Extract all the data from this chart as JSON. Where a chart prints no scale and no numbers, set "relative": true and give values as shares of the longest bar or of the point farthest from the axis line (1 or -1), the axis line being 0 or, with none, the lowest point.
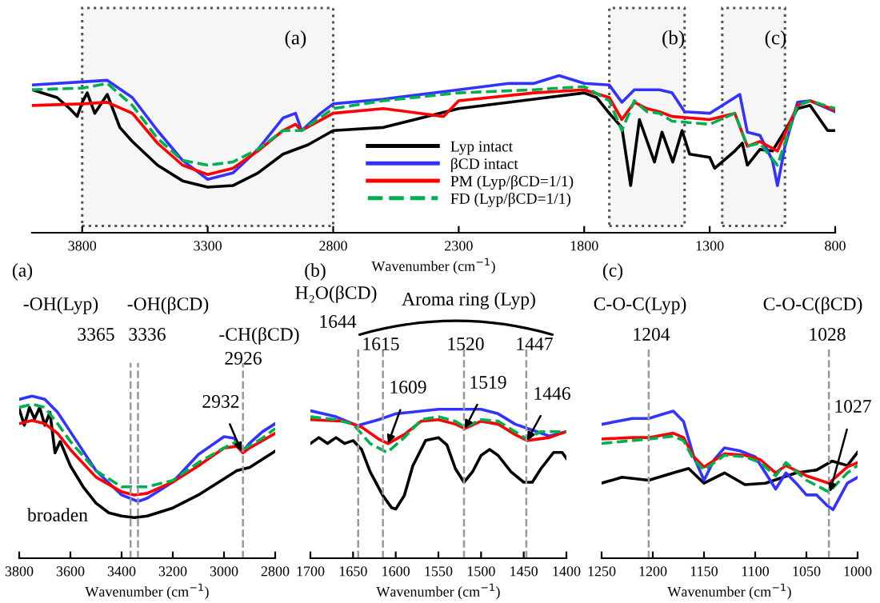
{
  "chart_data": [
    {
      "type": "line",
      "relative": true,
      "xlabel": "Wavenumber (cm$^{−1}$)",
      "xlim": [
        4000,
        800
      ],
      "xticks": [
        3800,
        3300,
        2800,
        2300,
        1800,
        1300,
        800
      ],
      "legend": "bottom",
      "bands": [
        {
          "axis": "x",
          "from": 3800,
          "to": 2800,
          "label": "(a)"
        },
        {
          "axis": "x",
          "from": 1700,
          "to": 1400,
          "label": "(b)"
        },
        {
          "axis": "x",
          "from": 1250,
          "to": 1000,
          "label": "(c)"
        }
      ],
      "series": [
        {
          "name": "Lyp intact",
          "color": "#000000",
          "line_style": "solid",
          "x": [
            4000,
            3900,
            3850,
            3820,
            3800,
            3780,
            3750,
            3700,
            3650,
            3600,
            3500,
            3400,
            3300,
            3200,
            3100,
            3000,
            2900,
            2800,
            2600,
            2300,
            2000,
            1800,
            1750,
            1700,
            1650,
            1615,
            1580,
            1520,
            1490,
            1447,
            1410,
            1380,
            1300,
            1280,
            1200,
            1170,
            1150,
            1100,
            1050,
            1000,
            950,
            900,
            830,
            800
          ],
          "values": [
            0.91,
            0.86,
            0.79,
            0.74,
            0.83,
            0.89,
            0.76,
            0.88,
            0.67,
            0.58,
            0.43,
            0.33,
            0.29,
            0.3,
            0.38,
            0.5,
            0.56,
            0.65,
            0.67,
            0.79,
            0.85,
            0.89,
            0.86,
            0.76,
            0.67,
            0.3,
            0.72,
            0.45,
            0.64,
            0.45,
            0.65,
            0.5,
            0.48,
            0.41,
            0.52,
            0.57,
            0.43,
            0.53,
            0.52,
            0.65,
            0.79,
            0.81,
            0.65,
            0.65
          ]
        },
        {
          "name": "βCD intact",
          "color": "#3333ff",
          "line_style": "solid",
          "x": [
            4000,
            3800,
            3700,
            3600,
            3500,
            3400,
            3300,
            3200,
            3100,
            3000,
            2950,
            2926,
            2850,
            2800,
            2600,
            2300,
            2100,
            2000,
            1900,
            1800,
            1700,
            1650,
            1600,
            1500,
            1450,
            1400,
            1300,
            1200,
            1180,
            1150,
            1100,
            1050,
            1030,
            1000,
            950,
            900,
            800
          ],
          "values": [
            0.94,
            0.96,
            0.97,
            0.86,
            0.65,
            0.46,
            0.34,
            0.38,
            0.53,
            0.73,
            0.76,
            0.65,
            0.76,
            0.82,
            0.85,
            0.91,
            0.95,
            0.95,
            1.0,
            0.95,
            0.94,
            0.83,
            0.91,
            0.91,
            0.89,
            0.77,
            0.76,
            0.86,
            0.88,
            0.64,
            0.62,
            0.46,
            0.3,
            0.55,
            0.83,
            0.84,
            0.77
          ]
        },
        {
          "name": "PM (Lyp/βCD=1/1)",
          "color": "#ff0000",
          "line_style": "solid",
          "x": [
            4000,
            3800,
            3700,
            3600,
            3500,
            3400,
            3300,
            3200,
            3100,
            3000,
            2950,
            2926,
            2800,
            2600,
            2360,
            2300,
            2000,
            1800,
            1700,
            1650,
            1600,
            1550,
            1500,
            1450,
            1300,
            1200,
            1150,
            1100,
            1030,
            950,
            900,
            800
          ],
          "values": [
            0.81,
            0.82,
            0.83,
            0.76,
            0.57,
            0.43,
            0.37,
            0.41,
            0.52,
            0.65,
            0.69,
            0.65,
            0.76,
            0.79,
            0.74,
            0.84,
            0.89,
            0.91,
            0.86,
            0.72,
            0.83,
            0.79,
            0.77,
            0.74,
            0.72,
            0.76,
            0.55,
            0.58,
            0.52,
            0.81,
            0.84,
            0.78
          ]
        },
        {
          "name": "FD (Lyp/βCD=1/1)",
          "color": "#00b050",
          "line_style": "dashed",
          "x": [
            4000,
            3800,
            3700,
            3600,
            3500,
            3400,
            3300,
            3200,
            3100,
            3000,
            2926,
            2800,
            2600,
            2300,
            2000,
            1800,
            1700,
            1650,
            1600,
            1550,
            1500,
            1450,
            1300,
            1200,
            1150,
            1100,
            1030,
            950,
            900,
            800
          ],
          "values": [
            0.91,
            0.92,
            0.95,
            0.81,
            0.6,
            0.46,
            0.43,
            0.45,
            0.53,
            0.65,
            0.65,
            0.79,
            0.84,
            0.89,
            0.91,
            0.93,
            0.84,
            0.65,
            0.84,
            0.77,
            0.76,
            0.71,
            0.69,
            0.76,
            0.55,
            0.57,
            0.43,
            0.81,
            0.84,
            0.79
          ]
        }
      ]
    },
    {
      "type": "line",
      "relative": true,
      "xlabel": "Wavenumber (cm$^{−1}$)",
      "xlim": [
        3800,
        2800
      ],
      "xticks": [
        3800,
        3600,
        3400,
        3200,
        3000,
        2800
      ],
      "ref_lines": [
        {
          "axis": "x",
          "value": 3365,
          "label": "3365"
        },
        {
          "axis": "x",
          "value": 3336,
          "label": "3336"
        },
        {
          "axis": "x",
          "value": 2926,
          "label": "2926"
        }
      ],
      "annotations": [
        "(a)",
        "-OH(Lyp)",
        "-OH(βCD)",
        "-CH(βCD)",
        "broaden",
        {
          "text": "2932",
          "x": 2932,
          "y": 0.66
        }
      ],
      "series": [
        {
          "color": "#000000",
          "line_style": "solid",
          "x": [
            3800,
            3780,
            3760,
            3740,
            3720,
            3700,
            3680,
            3660,
            3640,
            3600,
            3550,
            3500,
            3450,
            3400,
            3350,
            3300,
            3200,
            3100,
            3000,
            2950,
            2900,
            2800
          ],
          "values": [
            0.92,
            0.82,
            0.93,
            0.86,
            0.93,
            0.82,
            0.9,
            0.65,
            0.72,
            0.57,
            0.44,
            0.34,
            0.28,
            0.26,
            0.25,
            0.26,
            0.31,
            0.39,
            0.49,
            0.54,
            0.56,
            0.66
          ]
        },
        {
          "color": "#3333ff",
          "line_style": "solid",
          "x": [
            3800,
            3750,
            3700,
            3650,
            3600,
            3500,
            3400,
            3336,
            3300,
            3200,
            3100,
            3000,
            2960,
            2926,
            2900,
            2850,
            2800
          ],
          "values": [
            0.98,
            1.0,
            0.98,
            0.9,
            0.78,
            0.54,
            0.39,
            0.35,
            0.37,
            0.47,
            0.64,
            0.75,
            0.74,
            0.66,
            0.71,
            0.78,
            0.83
          ]
        },
        {
          "color": "#ff0000",
          "line_style": "solid",
          "x": [
            3800,
            3750,
            3700,
            3650,
            3600,
            3500,
            3400,
            3350,
            3300,
            3200,
            3100,
            3000,
            2950,
            2926,
            2900,
            2800
          ],
          "values": [
            0.83,
            0.85,
            0.83,
            0.77,
            0.67,
            0.5,
            0.41,
            0.39,
            0.4,
            0.47,
            0.57,
            0.68,
            0.69,
            0.65,
            0.68,
            0.77
          ]
        },
        {
          "color": "#00b050",
          "line_style": "dashed",
          "x": [
            3800,
            3750,
            3700,
            3650,
            3600,
            3500,
            3400,
            3350,
            3300,
            3200,
            3100,
            3000,
            2950,
            2926,
            2850,
            2800
          ],
          "values": [
            0.93,
            0.95,
            0.93,
            0.83,
            0.72,
            0.54,
            0.44,
            0.44,
            0.44,
            0.48,
            0.59,
            0.68,
            0.72,
            0.67,
            0.74,
            0.8
          ]
        }
      ]
    },
    {
      "type": "line",
      "relative": true,
      "xlabel": "Wavenumber (cm$^{−1}$)",
      "xlim": [
        1700,
        1400
      ],
      "xticks": [
        1700,
        1650,
        1600,
        1550,
        1500,
        1450,
        1400
      ],
      "ref_lines": [
        {
          "axis": "x",
          "value": 1644,
          "label": "1644"
        },
        {
          "axis": "x",
          "value": 1615,
          "label": "1615"
        },
        {
          "axis": "x",
          "value": 1520,
          "label": "1520"
        },
        {
          "axis": "x",
          "value": 1447,
          "label": "1447"
        }
      ],
      "annotations": [
        "(b)",
        "H₂O(βCD)",
        "Aroma ring (Lyp)",
        {
          "text": "1609",
          "x": 1609,
          "y": 0.77
        },
        {
          "text": "1519",
          "x": 1519,
          "y": 0.87
        },
        {
          "text": "1446",
          "x": 1446,
          "y": 0.79
        }
      ],
      "series": [
        {
          "color": "#000000",
          "line_style": "solid",
          "x": [
            1700,
            1690,
            1680,
            1670,
            1660,
            1650,
            1640,
            1630,
            1615,
            1605,
            1600,
            1590,
            1580,
            1565,
            1550,
            1540,
            1530,
            1520,
            1510,
            1500,
            1490,
            1480,
            1465,
            1450,
            1440,
            1430,
            1415,
            1405,
            1400
          ],
          "values": [
            0.77,
            0.81,
            0.77,
            0.81,
            0.77,
            0.79,
            0.73,
            0.58,
            0.42,
            0.34,
            0.33,
            0.42,
            0.62,
            0.79,
            0.81,
            0.76,
            0.6,
            0.51,
            0.58,
            0.69,
            0.73,
            0.69,
            0.58,
            0.51,
            0.51,
            0.6,
            0.71,
            0.71,
            0.67
          ]
        },
        {
          "color": "#3333ff",
          "line_style": "solid",
          "x": [
            1700,
            1670,
            1645,
            1620,
            1600,
            1550,
            1500,
            1480,
            1460,
            1440,
            1420,
            1400
          ],
          "values": [
            0.99,
            0.95,
            0.89,
            0.93,
            0.97,
            1.0,
            1.0,
            0.97,
            0.9,
            0.86,
            0.82,
            0.85
          ]
        },
        {
          "color": "#ff0000",
          "line_style": "solid",
          "x": [
            1700,
            1660,
            1640,
            1620,
            1609,
            1590,
            1570,
            1550,
            1530,
            1519,
            1500,
            1480,
            1460,
            1446,
            1420,
            1400
          ],
          "values": [
            0.93,
            0.92,
            0.88,
            0.8,
            0.77,
            0.83,
            0.92,
            0.93,
            0.9,
            0.87,
            0.92,
            0.9,
            0.83,
            0.79,
            0.81,
            0.85
          ]
        },
        {
          "color": "#00b050",
          "line_style": "dashed",
          "x": [
            1700,
            1670,
            1650,
            1630,
            1610,
            1590,
            1570,
            1550,
            1530,
            1519,
            1500,
            1480,
            1460,
            1446,
            1430,
            1400
          ],
          "values": [
            0.95,
            0.93,
            0.9,
            0.77,
            0.71,
            0.81,
            0.93,
            0.95,
            0.92,
            0.88,
            0.93,
            0.92,
            0.85,
            0.8,
            0.85,
            0.85
          ]
        }
      ]
    },
    {
      "type": "line",
      "relative": true,
      "xlabel": "Wavenumber (cm$^{−1}$)",
      "xlim": [
        1250,
        1000
      ],
      "xticks": [
        1250,
        1200,
        1150,
        1100,
        1050,
        1000
      ],
      "ref_lines": [
        {
          "axis": "x",
          "value": 1204,
          "label": "1204"
        },
        {
          "axis": "x",
          "value": 1028,
          "label": "1028"
        }
      ],
      "annotations": [
        "(c)",
        "C-O-C(Lyp)",
        "C-O-C(βCD)",
        {
          "text": "1027",
          "x": 1027,
          "y": 0.45
        }
      ],
      "series": [
        {
          "color": "#000000",
          "line_style": "solid",
          "x": [
            1250,
            1230,
            1204,
            1180,
            1165,
            1150,
            1130,
            1110,
            1090,
            1060,
            1040,
            1025,
            1010,
            1000
          ],
          "values": [
            0.51,
            0.55,
            0.53,
            0.58,
            0.61,
            0.51,
            0.58,
            0.5,
            0.51,
            0.58,
            0.6,
            0.66,
            0.63,
            0.72
          ]
        },
        {
          "color": "#3333ff",
          "line_style": "solid",
          "x": [
            1250,
            1220,
            1204,
            1190,
            1180,
            1170,
            1160,
            1150,
            1140,
            1130,
            1115,
            1100,
            1090,
            1080,
            1070,
            1060,
            1050,
            1040,
            1030,
            1024,
            1010,
            1000
          ],
          "values": [
            0.91,
            0.95,
            0.95,
            0.98,
            1.0,
            0.93,
            0.69,
            0.53,
            0.67,
            0.75,
            0.73,
            0.69,
            0.58,
            0.47,
            0.58,
            0.51,
            0.43,
            0.43,
            0.36,
            0.33,
            0.51,
            0.55
          ]
        },
        {
          "color": "#ff0000",
          "line_style": "solid",
          "x": [
            1250,
            1220,
            1204,
            1180,
            1170,
            1160,
            1150,
            1130,
            1110,
            1095,
            1080,
            1070,
            1050,
            1028,
            1010,
            1000
          ],
          "values": [
            0.81,
            0.82,
            0.82,
            0.85,
            0.82,
            0.69,
            0.62,
            0.71,
            0.7,
            0.67,
            0.58,
            0.63,
            0.56,
            0.51,
            0.62,
            0.65
          ]
        },
        {
          "color": "#00b050",
          "line_style": "dashed",
          "x": [
            1250,
            1220,
            1204,
            1180,
            1170,
            1160,
            1150,
            1130,
            1110,
            1095,
            1080,
            1070,
            1050,
            1028,
            1010,
            1000
          ],
          "values": [
            0.78,
            0.8,
            0.81,
            0.83,
            0.8,
            0.67,
            0.6,
            0.7,
            0.69,
            0.65,
            0.56,
            0.65,
            0.53,
            0.45,
            0.58,
            0.63
          ]
        }
      ]
    }
  ]
}
